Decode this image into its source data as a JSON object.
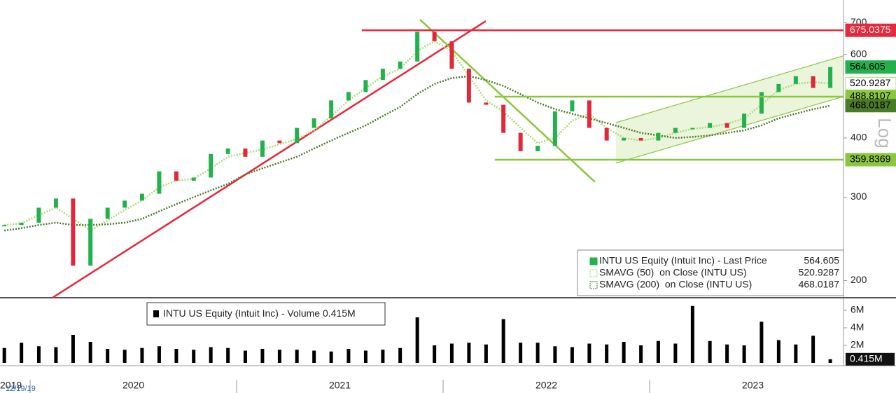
{
  "chart_data": {
    "type": "candlestick",
    "log_scale": true,
    "scale_label": "Log",
    "edge_year_label": "2019",
    "start_date_label": "12/19/19",
    "x": [
      2019.875,
      2019.958,
      2020.042,
      2020.125,
      2020.208,
      2020.292,
      2020.375,
      2020.458,
      2020.542,
      2020.625,
      2020.708,
      2020.792,
      2020.875,
      2020.958,
      2021.042,
      2021.125,
      2021.208,
      2021.292,
      2021.375,
      2021.458,
      2021.542,
      2021.625,
      2021.708,
      2021.792,
      2021.875,
      2021.958,
      2022.042,
      2022.125,
      2022.208,
      2022.292,
      2022.375,
      2022.458,
      2022.542,
      2022.625,
      2022.708,
      2022.792,
      2022.875,
      2022.958,
      2023.042,
      2023.125,
      2023.208,
      2023.292,
      2023.375,
      2023.458,
      2023.542,
      2023.625,
      2023.708,
      2023.792,
      2023.875
    ],
    "xlim": [
      2019.854,
      2023.939
    ],
    "xticks": [
      2020,
      2021,
      2022,
      2023
    ],
    "ylim": [
      184,
      782
    ],
    "yticks": [
      200,
      300,
      400,
      600,
      700
    ],
    "up_color": "#22b14c",
    "down_color": "#e0283c",
    "series": [
      {
        "name": "INTU US Equity (Intuit Inc) - Last Price",
        "color": "#22b14c",
        "values": [
          262,
          265,
          285,
          298,
          215,
          270,
          285,
          295,
          305,
          340,
          325,
          330,
          370,
          380,
          365,
          395,
          390,
          420,
          440,
          480,
          500,
          530,
          560,
          580,
          670,
          640,
          560,
          475,
          470,
          410,
          375,
          385,
          455,
          480,
          420,
          395,
          400,
          395,
          410,
          420,
          420,
          430,
          420,
          450,
          500,
          520,
          540,
          510,
          564.605
        ]
      },
      {
        "name": "SMAVG (50)  on Close (INTU US)",
        "color": "#a8dc78",
        "values": [
          262,
          264,
          275,
          285,
          270,
          255,
          268,
          282,
          295,
          315,
          325,
          328,
          345,
          365,
          372,
          378,
          388,
          398,
          415,
          445,
          480,
          510,
          540,
          560,
          610,
          640,
          610,
          540,
          480,
          455,
          420,
          390,
          400,
          435,
          450,
          420,
          400,
          395,
          400,
          410,
          418,
          422,
          428,
          440,
          470,
          505,
          520,
          525,
          520.9287
        ]
      },
      {
        "name": "SMAVG (200)  on Close (INTU US)",
        "color": "#4a7a2a",
        "values": [
          255,
          258,
          262,
          265,
          262,
          262,
          263,
          265,
          270,
          280,
          290,
          300,
          310,
          320,
          335,
          345,
          355,
          365,
          380,
          395,
          410,
          425,
          445,
          465,
          495,
          520,
          535,
          540,
          530,
          515,
          495,
          475,
          460,
          450,
          440,
          430,
          420,
          410,
          405,
          400,
          402,
          405,
          410,
          415,
          425,
          440,
          450,
          460,
          468.0187
        ]
      }
    ],
    "levels": [
      {
        "value": 675.0375,
        "start": 2021.606,
        "color": "#e8283c"
      },
      {
        "value": 488.8107,
        "start": 2022.25,
        "color": "#8cc63f"
      },
      {
        "value": 359.8369,
        "start": 2022.25,
        "color": "#8cc63f"
      }
    ],
    "trendlines": [
      {
        "color": "#e8283c",
        "x": [
          2020.108,
          2022.207
        ],
        "y": [
          184,
          706
        ]
      },
      {
        "color": "#8cc63f",
        "x": [
          2021.888,
          2022.735
        ],
        "y": [
          711,
          323
        ]
      },
      {
        "color": "#8cc63f",
        "x": [
          2022.837,
          2023.938
        ],
        "y": [
          354,
          489
        ]
      },
      {
        "color": "#8cc63f",
        "x": [
          2022.837,
          2023.938
        ],
        "y": [
          431,
          596
        ]
      }
    ],
    "volume": {
      "name": "INTU US Equity (Intuit Inc) - Volume",
      "color": "#000000",
      "values": [
        1700000,
        2300000,
        1900000,
        1800000,
        3200000,
        2400000,
        1600000,
        1500000,
        1700000,
        1900000,
        1600000,
        1500000,
        1800000,
        1700000,
        1400000,
        1600000,
        1500000,
        1500000,
        1400000,
        1300000,
        1600000,
        1400000,
        1500000,
        1700000,
        5200000,
        2000000,
        2200000,
        2300000,
        2100000,
        5000000,
        2300000,
        2300000,
        1900000,
        1800000,
        2200000,
        2100000,
        2400000,
        2000000,
        2500000,
        2200000,
        6500000,
        2500000,
        2100000,
        2000000,
        4700000,
        2600000,
        2100000,
        3100000,
        415000
      ],
      "last_label": "0.415M",
      "ylim": [
        0,
        7280000
      ],
      "yticks": [
        {
          "value": 2000000,
          "label": "2M"
        },
        {
          "value": 4000000,
          "label": "4M"
        },
        {
          "value": 6000000,
          "label": "6M"
        }
      ]
    }
  }
}
